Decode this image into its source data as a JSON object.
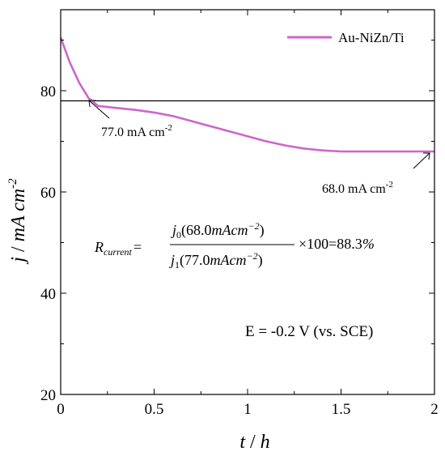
{
  "chart_data": {
    "type": "line",
    "xlabel_var": "t",
    "xlabel_unit": "h",
    "ylabel_var": "j",
    "ylabel_unit_base": "mA cm",
    "ylabel_unit_exp": "-2",
    "xlim": [
      0,
      2
    ],
    "ylim": [
      20,
      96
    ],
    "xticks": [
      0,
      0.5,
      1,
      1.5,
      2
    ],
    "xtick_labels": [
      "0",
      "0.5",
      "1",
      "1.5",
      "2"
    ],
    "yticks": [
      20,
      40,
      60,
      80
    ],
    "ytick_labels": [
      "20",
      "40",
      "60",
      "80"
    ],
    "grid": false,
    "legend_position": "top-right",
    "series": [
      {
        "name": "Au-NiZn/Ti",
        "color": "#cc66cc",
        "x": [
          0,
          0.02,
          0.05,
          0.1,
          0.15,
          0.2,
          0.3,
          0.4,
          0.5,
          0.6,
          0.7,
          0.8,
          0.9,
          1.0,
          1.1,
          1.2,
          1.3,
          1.4,
          1.5,
          1.6,
          1.7,
          1.8,
          1.9,
          2.0
        ],
        "values": [
          90.5,
          88.5,
          85.5,
          81.5,
          78.5,
          77.0,
          76.6,
          76.2,
          75.7,
          75.0,
          74.0,
          73.0,
          72.0,
          71.0,
          70.0,
          69.2,
          68.6,
          68.2,
          68.0,
          68.0,
          68.0,
          68.0,
          68.0,
          68.0
        ]
      }
    ],
    "reference_line": {
      "y": 78.0,
      "color": "#000000"
    },
    "annotations": [
      {
        "base": "77.0 mA cm",
        "exp": "-2",
        "point": [
          0.17,
          77.8
        ]
      },
      {
        "base": "68.0 mA cm",
        "exp": "-2",
        "point": [
          1.98,
          68.0
        ]
      }
    ],
    "formula": {
      "lhs_var": "R",
      "lhs_sub": "current",
      "equals": "=",
      "num_var": "j",
      "num_sub": "0",
      "num_arg": "(68.0",
      "num_unit": "mAcm",
      "num_exp": "−2",
      "num_close": ")",
      "den_var": "j",
      "den_sub": "1",
      "den_arg": "(77.0",
      "den_unit": "mAcm",
      "den_exp": "−2",
      "den_close": ")",
      "tail": "×100=88.3",
      "percent": "%"
    },
    "condition": "E = -0.2 V (vs. SCE)"
  }
}
